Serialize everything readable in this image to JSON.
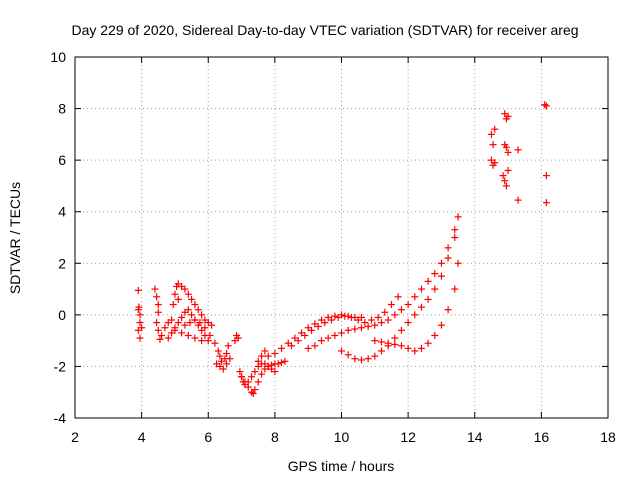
{
  "chart_data": {
    "type": "scatter",
    "title": "Day 229 of 2020, Sidereal Day-to-day VTEC variation (SDTVAR) for receiver areg",
    "xlabel": "GPS time / hours",
    "ylabel": "SDTVAR / TECUs",
    "xlim": [
      2,
      18
    ],
    "ylim": [
      -4,
      10
    ],
    "xticks": [
      2,
      4,
      6,
      8,
      10,
      12,
      14,
      16,
      18
    ],
    "yticks": [
      -4,
      -2,
      0,
      2,
      4,
      6,
      8,
      10
    ],
    "grid": true,
    "marker": "+",
    "color": "#ff0000",
    "series": [
      {
        "name": "SDTVAR",
        "x": [
          3.9,
          3.9,
          3.95,
          3.95,
          3.9,
          3.95,
          3.92,
          4.0,
          4.4,
          4.45,
          4.5,
          4.5,
          4.45,
          4.5,
          4.55,
          4.6,
          4.7,
          4.8,
          4.9,
          4.95,
          5.0,
          5.05,
          5.1,
          5.1,
          5.2,
          5.3,
          5.4,
          5.5,
          5.6,
          5.7,
          5.8,
          5.9,
          6.0,
          6.1,
          5.0,
          5.1,
          5.2,
          5.3,
          5.4,
          5.5,
          5.6,
          5.7,
          5.8,
          5.9,
          6.0,
          4.8,
          4.9,
          5.0,
          5.2,
          5.4,
          5.6,
          5.8,
          5.3,
          5.45,
          5.6,
          5.75,
          5.9,
          6.05,
          6.2,
          6.3,
          6.35,
          6.4,
          6.5,
          6.55,
          6.6,
          6.25,
          6.35,
          6.45,
          6.55,
          6.65,
          6.8,
          6.85,
          6.9,
          6.95,
          7.0,
          7.1,
          7.2,
          7.3,
          7.35,
          7.4,
          7.5,
          7.6,
          7.7,
          7.8,
          7.9,
          8.0,
          8.1,
          8.2,
          8.3,
          7.0,
          7.05,
          7.1,
          7.2,
          7.3,
          7.4,
          7.5,
          7.6,
          7.7,
          7.8,
          7.9,
          8.0,
          7.5,
          7.6,
          7.7,
          7.8,
          8.0,
          8.2,
          8.4,
          8.6,
          8.8,
          9.0,
          9.2,
          9.4,
          9.6,
          9.8,
          10.0,
          10.2,
          10.4,
          10.6,
          8.5,
          8.7,
          8.9,
          9.1,
          9.3,
          9.5,
          9.7,
          9.9,
          10.1,
          10.3,
          10.5,
          10.7,
          10.9,
          11.1,
          11.3,
          11.5,
          11.7,
          9.0,
          9.2,
          9.4,
          9.6,
          9.8,
          10.0,
          10.2,
          10.4,
          10.6,
          10.8,
          11.0,
          11.2,
          11.4,
          11.6,
          11.8,
          12.0,
          12.2,
          12.4,
          12.6,
          12.8,
          13.0,
          13.2,
          13.4,
          10.0,
          10.2,
          10.4,
          10.6,
          10.8,
          11.0,
          11.2,
          11.4,
          11.6,
          11.8,
          12.0,
          12.2,
          12.4,
          12.6,
          12.8,
          13.0,
          13.2,
          13.4,
          13.5,
          11.0,
          11.2,
          11.4,
          11.6,
          11.8,
          12.0,
          12.2,
          12.4,
          12.6,
          12.8,
          13.0,
          13.2,
          13.4,
          13.5,
          14.5,
          14.55,
          14.6,
          14.5,
          14.55,
          14.6,
          14.9,
          14.95,
          15.0,
          14.9,
          14.95,
          15.0,
          14.85,
          14.9,
          14.95,
          15.0,
          15.3,
          15.3,
          16.1,
          16.15,
          16.15,
          16.15
        ],
        "y": [
          0.95,
          0.2,
          0.0,
          -0.3,
          -0.6,
          -0.9,
          0.3,
          -0.5,
          1.0,
          0.7,
          0.4,
          0.1,
          -0.3,
          -0.6,
          -0.95,
          -0.8,
          -0.5,
          -0.3,
          -0.2,
          0.4,
          0.8,
          1.1,
          1.2,
          0.6,
          1.1,
          1.0,
          0.8,
          0.6,
          0.4,
          0.2,
          0.0,
          -0.2,
          -0.3,
          -0.4,
          -0.5,
          -0.3,
          -0.1,
          0.1,
          0.2,
          0.0,
          -0.2,
          -0.4,
          -0.6,
          -0.8,
          -1.0,
          -0.9,
          -0.7,
          -0.6,
          -0.7,
          -0.8,
          -0.9,
          -1.0,
          -0.4,
          -0.3,
          -0.2,
          -0.3,
          -0.5,
          -0.8,
          -1.1,
          -1.4,
          -1.6,
          -1.8,
          -1.7,
          -1.5,
          -1.2,
          -1.9,
          -2.0,
          -2.1,
          -1.9,
          -1.7,
          -1.0,
          -0.8,
          -0.9,
          -2.2,
          -2.4,
          -2.6,
          -2.8,
          -3.0,
          -3.05,
          -2.9,
          -2.6,
          -2.3,
          -2.1,
          -2.0,
          -1.95,
          -1.9,
          -1.9,
          -1.85,
          -1.8,
          -2.4,
          -2.6,
          -2.7,
          -2.6,
          -2.4,
          -2.2,
          -2.0,
          -1.9,
          -1.9,
          -2.0,
          -2.1,
          -2.2,
          -1.8,
          -1.6,
          -1.4,
          -1.6,
          -1.5,
          -1.3,
          -1.1,
          -0.9,
          -0.7,
          -0.5,
          -0.35,
          -0.2,
          -0.1,
          -0.05,
          0.0,
          -0.05,
          -0.1,
          -0.1,
          -1.2,
          -1.0,
          -0.8,
          -0.6,
          -0.45,
          -0.3,
          -0.2,
          -0.1,
          -0.05,
          -0.1,
          -0.2,
          -0.3,
          -0.2,
          -0.1,
          0.1,
          0.4,
          0.7,
          -1.3,
          -1.2,
          -1.0,
          -0.9,
          -0.8,
          -0.7,
          -0.6,
          -0.55,
          -0.5,
          -0.45,
          -0.4,
          -0.3,
          -0.2,
          0.0,
          0.2,
          0.4,
          0.7,
          1.0,
          1.3,
          1.6,
          2.0,
          2.6,
          3.3,
          -1.4,
          -1.55,
          -1.7,
          -1.75,
          -1.7,
          -1.6,
          -1.4,
          -1.2,
          -0.9,
          -0.6,
          -0.3,
          0.0,
          0.3,
          0.6,
          1.0,
          1.5,
          2.2,
          3.0,
          3.8,
          -1.0,
          -1.05,
          -1.1,
          -1.15,
          -1.2,
          -1.3,
          -1.4,
          -1.3,
          -1.1,
          -0.8,
          -0.4,
          0.2,
          1.0,
          2.0,
          7.0,
          6.6,
          7.2,
          6.0,
          5.8,
          5.9,
          7.8,
          7.6,
          7.7,
          6.6,
          6.5,
          6.3,
          5.4,
          5.2,
          5.0,
          5.6,
          6.4,
          4.45,
          8.15,
          8.1,
          5.4,
          4.35
        ]
      }
    ]
  }
}
